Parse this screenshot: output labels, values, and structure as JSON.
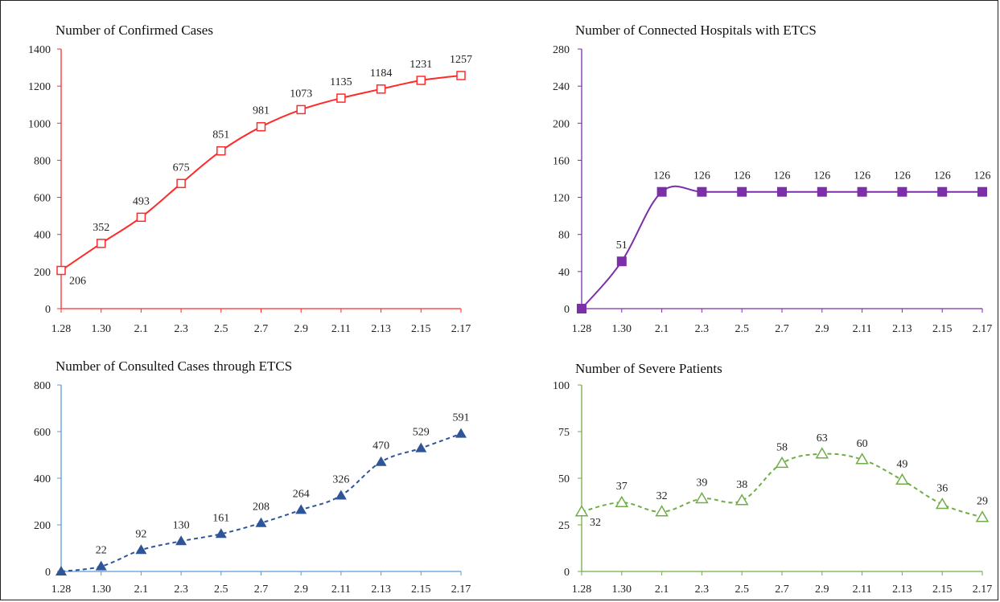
{
  "chart_data": [
    {
      "type": "line",
      "title": "Number of Confirmed Cases",
      "categories": [
        "1.28",
        "1.30",
        "2.1",
        "2.3",
        "2.5",
        "2.7",
        "2.9",
        "2.11",
        "2.13",
        "2.15",
        "2.17"
      ],
      "series": [
        {
          "values": [
            206,
            352,
            493,
            675,
            851,
            981,
            1073,
            1135,
            1184,
            1231,
            1257
          ]
        }
      ],
      "data_labels": [
        "206",
        "352",
        "493",
        "675",
        "851",
        "981",
        "1073",
        "1135",
        "1184",
        "1231",
        "1257"
      ],
      "ylim": [
        0,
        1400
      ],
      "yticks": [
        0,
        200,
        400,
        600,
        800,
        1000,
        1200,
        1400
      ],
      "ytick_labels": [
        "0",
        "200",
        "400",
        "600",
        "800",
        "1000",
        "1200",
        "1400"
      ],
      "color": "#ff2a2a",
      "marker": "open-square",
      "line_style": "solid-smooth",
      "grid": false
    },
    {
      "type": "line",
      "title": "Number of Connected Hospitals with ETCS",
      "categories": [
        "1.28",
        "1.30",
        "2.1",
        "2.3",
        "2.5",
        "2.7",
        "2.9",
        "2.11",
        "2.13",
        "2.15",
        "2.17"
      ],
      "series": [
        {
          "values": [
            0,
            51,
            126,
            126,
            126,
            126,
            126,
            126,
            126,
            126,
            126
          ]
        }
      ],
      "data_labels": [
        "",
        "51",
        "126",
        "126",
        "126",
        "126",
        "126",
        "126",
        "126",
        "126",
        "126"
      ],
      "ylim": [
        0,
        280
      ],
      "yticks": [
        0,
        40,
        80,
        120,
        160,
        200,
        240,
        280
      ],
      "ytick_labels": [
        "0",
        "40",
        "80",
        "120",
        "160",
        "200",
        "240",
        "280"
      ],
      "color": "#7b2fa8",
      "marker": "filled-square",
      "line_style": "solid-smooth",
      "grid": false
    },
    {
      "type": "line",
      "title": "Number of Consulted Cases through ETCS",
      "categories": [
        "1.28",
        "1.30",
        "2.1",
        "2.3",
        "2.5",
        "2.7",
        "2.9",
        "2.11",
        "2.13",
        "2.15",
        "2.17"
      ],
      "series": [
        {
          "values": [
            0,
            22,
            92,
            130,
            161,
            208,
            264,
            326,
            470,
            529,
            591
          ]
        }
      ],
      "data_labels": [
        "",
        "22",
        "92",
        "130",
        "161",
        "208",
        "264",
        "326",
        "470",
        "529",
        "591"
      ],
      "ylim": [
        0,
        800
      ],
      "yticks": [
        0,
        200,
        400,
        600,
        800
      ],
      "ytick_labels": [
        "0",
        "200",
        "400",
        "600",
        "800"
      ],
      "color": "#2e5597",
      "axis_color": "#5b9bd5",
      "marker": "filled-triangle",
      "line_style": "dashed-smooth",
      "grid": false
    },
    {
      "type": "line",
      "title": "Number of Severe Patients",
      "categories": [
        "1.28",
        "1.30",
        "2.1",
        "2.3",
        "2.5",
        "2.7",
        "2.9",
        "2.11",
        "2.13",
        "2.15",
        "2.17"
      ],
      "series": [
        {
          "values": [
            32,
            37,
            32,
            39,
            38,
            58,
            63,
            60,
            49,
            36,
            29
          ]
        }
      ],
      "data_labels": [
        "32",
        "37",
        "32",
        "39",
        "38",
        "58",
        "63",
        "60",
        "49",
        "36",
        "29"
      ],
      "ylim": [
        0,
        100
      ],
      "yticks": [
        0,
        25,
        50,
        75,
        100
      ],
      "ytick_labels": [
        "0",
        "25",
        "50",
        "75",
        "100"
      ],
      "color": "#70ad47",
      "marker": "open-triangle",
      "line_style": "dashed-smooth",
      "grid": false
    }
  ]
}
